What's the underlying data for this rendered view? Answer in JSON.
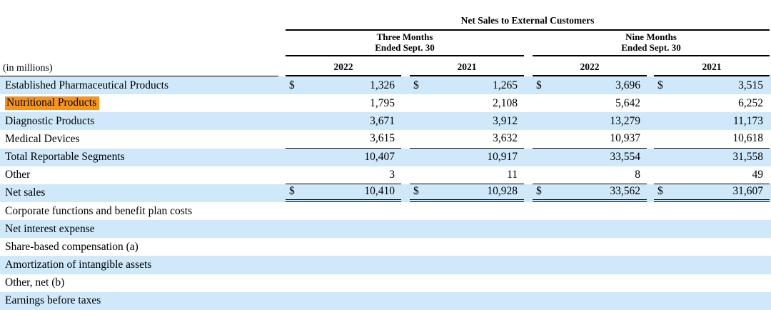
{
  "table": {
    "title": "Net Sales to External Customers",
    "units_label": "(in millions)",
    "currency": "$",
    "col_groups": [
      {
        "line1": "Three Months",
        "line2": "Ended Sept. 30"
      },
      {
        "line1": "Nine Months",
        "line2": "Ended Sept. 30"
      }
    ],
    "year_headers": [
      "2022",
      "2021",
      "2022",
      "2021"
    ],
    "rows": [
      {
        "label": "Established Pharmaceutical Products",
        "dollar": true,
        "highlight": false,
        "values": [
          "1,326",
          "1,265",
          "3,696",
          "3,515"
        ]
      },
      {
        "label": "Nutritional Products",
        "dollar": false,
        "highlight": true,
        "values": [
          "1,795",
          "2,108",
          "5,642",
          "6,252"
        ]
      },
      {
        "label": "Diagnostic Products",
        "dollar": false,
        "highlight": false,
        "values": [
          "3,671",
          "3,912",
          "13,279",
          "11,173"
        ]
      },
      {
        "label": "Medical Devices",
        "dollar": false,
        "highlight": false,
        "values": [
          "3,615",
          "3,632",
          "10,937",
          "10,618"
        ]
      },
      {
        "label": "Total Reportable Segments",
        "dollar": false,
        "highlight": false,
        "values": [
          "10,407",
          "10,917",
          "33,554",
          "31,558"
        ]
      },
      {
        "label": "Other",
        "dollar": false,
        "highlight": false,
        "values": [
          "3",
          "11",
          "8",
          "49"
        ]
      },
      {
        "label": "Net sales",
        "dollar": true,
        "highlight": false,
        "values": [
          "10,410",
          "10,928",
          "33,562",
          "31,607"
        ]
      },
      {
        "label": "Corporate functions and benefit plan costs",
        "values": []
      },
      {
        "label": "Net interest expense",
        "values": []
      },
      {
        "label": "Share-based compensation (a)",
        "values": []
      },
      {
        "label": "Amortization of intangible assets",
        "values": []
      },
      {
        "label": "Other, net (b)",
        "values": []
      },
      {
        "label": "Earnings before taxes",
        "values": []
      }
    ],
    "colors": {
      "stripe_blue": "#cfe9fa",
      "highlight_orange": "#f7941e",
      "line_black": "#000000"
    }
  }
}
